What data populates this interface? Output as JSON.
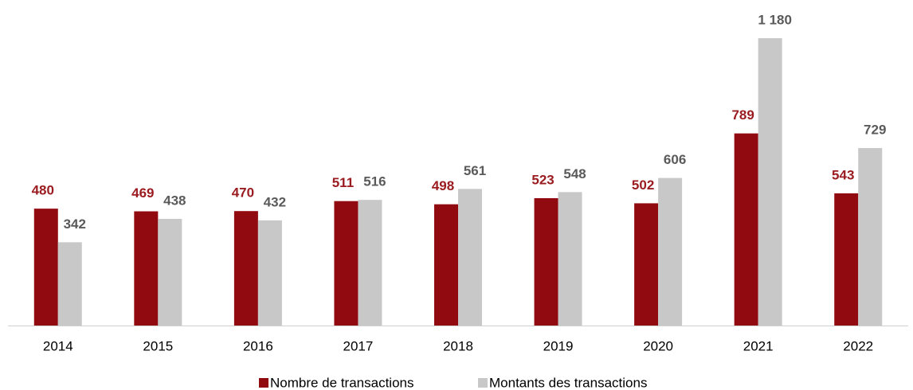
{
  "chart_data": {
    "type": "bar",
    "categories": [
      "2014",
      "2015",
      "2016",
      "2017",
      "2018",
      "2019",
      "2020",
      "2021",
      "2022"
    ],
    "series": [
      {
        "name": "Nombre de transactions",
        "color": "#910a0f",
        "label_color": "#9b1c20",
        "values": [
          480,
          469,
          470,
          511,
          498,
          523,
          502,
          789,
          543
        ]
      },
      {
        "name": "Montants des transactions",
        "color": "#c8c8c8",
        "label_color": "#5a5a5a",
        "values": [
          342,
          438,
          432,
          516,
          561,
          548,
          606,
          1180,
          729
        ],
        "value_labels": [
          "342",
          "438",
          "432",
          "516",
          "561",
          "548",
          "606",
          "1 180",
          "729"
        ]
      }
    ]
  }
}
